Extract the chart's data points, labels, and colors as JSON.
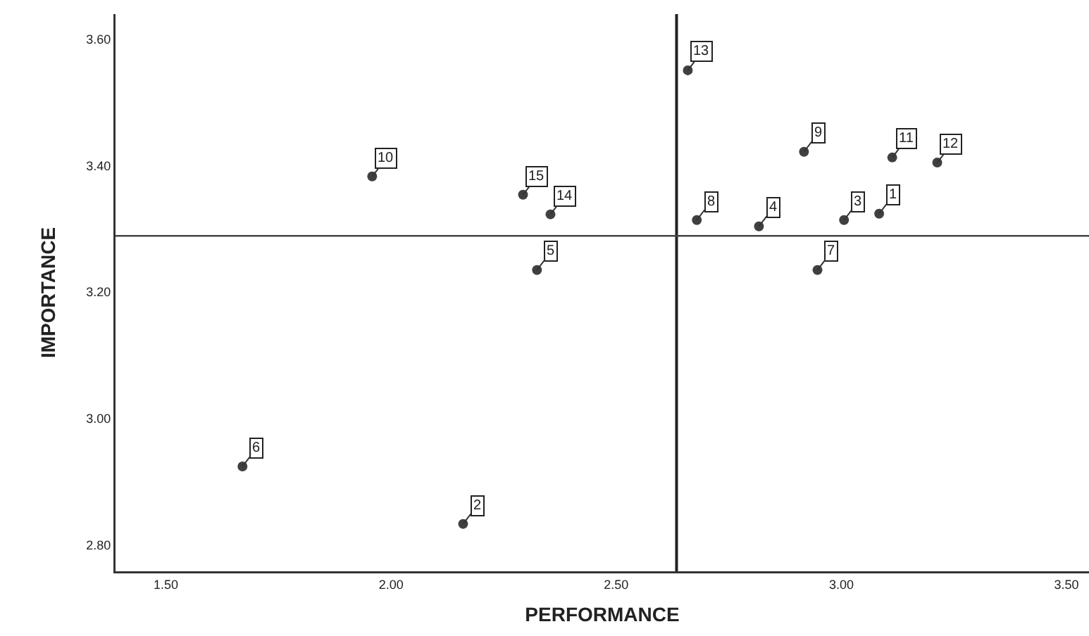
{
  "chart_data": {
    "type": "scatter",
    "xlabel": "PERFORMANCE",
    "ylabel": "IMPORTANCE",
    "x": [
      3.084,
      2.16,
      3.006,
      2.817,
      2.324,
      1.67,
      2.947,
      2.679,
      2.917,
      1.958,
      3.113,
      3.213,
      2.659,
      2.354,
      2.293
    ],
    "series": [
      {
        "color": "#404040",
        "values": [
          3.324,
          2.833,
          3.314,
          3.304,
          3.235,
          2.924,
          3.235,
          3.314,
          3.422,
          3.383,
          3.413,
          3.405,
          3.551,
          3.323,
          3.354
        ]
      }
    ],
    "marker": "circle",
    "grid": false,
    "xlim": [
      1.388,
      3.55
    ],
    "xticks": [
      {
        "value": 1.5,
        "label": "1.50"
      },
      {
        "value": 2,
        "label": "2.00"
      },
      {
        "value": 2.5,
        "label": "2.50"
      },
      {
        "value": 3,
        "label": "3.00"
      },
      {
        "value": 3.5,
        "label": "3.50"
      }
    ],
    "ylim": [
      2.758,
      3.64
    ],
    "yticks": [
      {
        "value": 2.8,
        "label": "2.80"
      },
      {
        "value": 3,
        "label": "3.00"
      },
      {
        "value": 3.2,
        "label": "3.20"
      },
      {
        "value": 3.4,
        "label": "3.40"
      },
      {
        "value": 3.6,
        "label": "3.60"
      }
    ],
    "ref_lines": [
      {
        "axis": "x",
        "value": 2.634,
        "color": "#222222"
      },
      {
        "axis": "y",
        "value": 3.289,
        "color": "#444444"
      }
    ],
    "annotations": [
      {
        "text": "1",
        "x": 3.084,
        "y": 3.324
      },
      {
        "text": "2",
        "x": 2.16,
        "y": 2.833
      },
      {
        "text": "3",
        "x": 3.006,
        "y": 3.314
      },
      {
        "text": "4",
        "x": 2.817,
        "y": 3.304
      },
      {
        "text": "5",
        "x": 2.324,
        "y": 3.235
      },
      {
        "text": "6",
        "x": 1.67,
        "y": 2.924
      },
      {
        "text": "7",
        "x": 2.947,
        "y": 3.235
      },
      {
        "text": "8",
        "x": 2.679,
        "y": 3.314
      },
      {
        "text": "9",
        "x": 2.917,
        "y": 3.422
      },
      {
        "text": "10",
        "x": 1.958,
        "y": 3.383
      },
      {
        "text": "11",
        "x": 3.113,
        "y": 3.413
      },
      {
        "text": "12",
        "x": 3.213,
        "y": 3.405
      },
      {
        "text": "13",
        "x": 2.659,
        "y": 3.551
      },
      {
        "text": "14",
        "x": 2.354,
        "y": 3.323
      },
      {
        "text": "15",
        "x": 2.293,
        "y": 3.354
      }
    ]
  }
}
